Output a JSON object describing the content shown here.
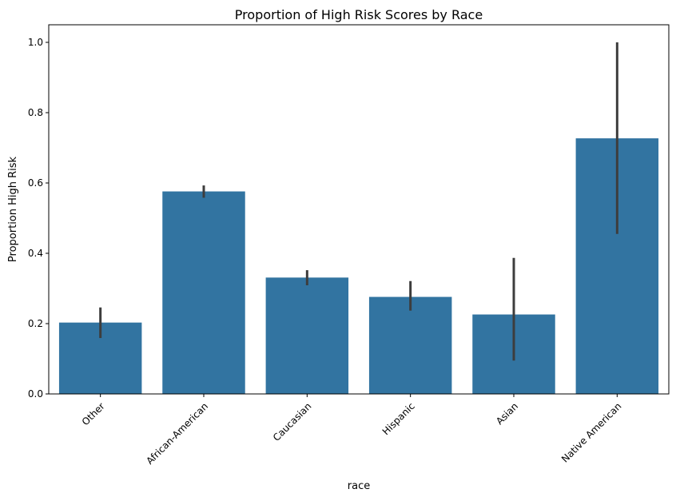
{
  "chart_data": {
    "type": "bar",
    "title": "Proportion of High Risk Scores by Race",
    "xlabel": "race",
    "ylabel": "Proportion High Risk",
    "categories": [
      "Other",
      "African-American",
      "Caucasian",
      "Hispanic",
      "Asian",
      "Native American"
    ],
    "values": [
      0.203,
      0.576,
      0.331,
      0.276,
      0.226,
      0.727
    ],
    "error_bars": [
      [
        0.159,
        0.246
      ],
      [
        0.558,
        0.593
      ],
      [
        0.309,
        0.352
      ],
      [
        0.237,
        0.321
      ],
      [
        0.095,
        0.387
      ],
      [
        0.455,
        1.0
      ]
    ],
    "ylim": [
      0,
      1.05
    ],
    "yticks": [
      "0.0",
      "0.2",
      "0.4",
      "0.6",
      "0.8",
      "1.0"
    ],
    "grid": false,
    "bar_color": "#3274a1",
    "errorbar_color": "#3d3d3d"
  }
}
